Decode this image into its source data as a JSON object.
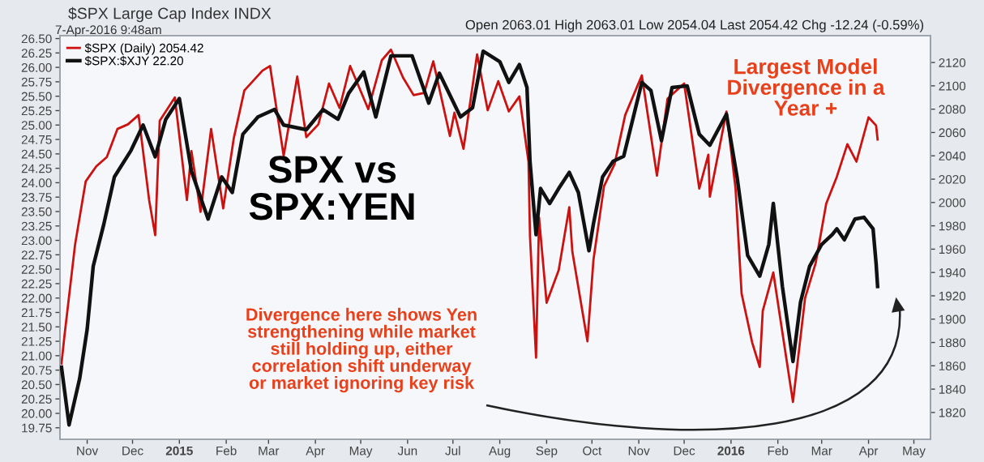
{
  "chart_data": {
    "type": "line",
    "title": "$SPX Large Cap Index INDX",
    "subtitle": "7-Apr-2016 9:48am",
    "annotations": [
      "Open 2063.01 High 2063.01 Low 2054.04 Last 2054.42 Chg -12.24 (-0.59%)",
      "SPX vs\nSPX:YEN",
      "Largest Model\nDivergence in a\nYear +",
      "Divergence here shows Yen\nstrengthening while market\nstill holding up, either\ncorrelation shift underway\nor market ignoring key risk"
    ],
    "legend": "top left",
    "series": [
      {
        "name": "$SPX (Daily) 2054.42",
        "color": "#cc1111",
        "axis": "y2",
        "x": [
          "2014-10-15",
          "2014-10-17",
          "2014-10-24",
          "2014-10-31",
          "2014-11-07",
          "2014-11-14",
          "2014-11-21",
          "2014-11-28",
          "2014-12-05",
          "2014-12-12",
          "2014-12-16",
          "2014-12-19",
          "2014-12-29",
          "2015-01-06",
          "2015-01-09",
          "2015-01-15",
          "2015-01-22",
          "2015-01-30",
          "2015-02-06",
          "2015-02-13",
          "2015-02-25",
          "2015-03-02",
          "2015-03-11",
          "2015-03-20",
          "2015-03-26",
          "2015-04-03",
          "2015-04-10",
          "2015-04-17",
          "2015-04-24",
          "2015-05-06",
          "2015-05-15",
          "2015-05-21",
          "2015-05-29",
          "2015-06-05",
          "2015-06-12",
          "2015-06-18",
          "2015-06-29",
          "2015-07-02",
          "2015-07-08",
          "2015-07-17",
          "2015-07-24",
          "2015-07-31",
          "2015-08-07",
          "2015-08-14",
          "2015-08-20",
          "2015-08-21",
          "2015-08-25",
          "2015-08-27",
          "2015-09-01",
          "2015-09-09",
          "2015-09-16",
          "2015-09-18",
          "2015-09-28",
          "2015-10-02",
          "2015-10-09",
          "2015-10-16",
          "2015-10-23",
          "2015-11-03",
          "2015-11-13",
          "2015-11-20",
          "2015-12-01",
          "2015-12-11",
          "2015-12-17",
          "2015-12-18",
          "2015-12-29",
          "2016-01-04",
          "2016-01-08",
          "2016-01-15",
          "2016-01-20",
          "2016-01-22",
          "2016-01-29",
          "2016-02-05",
          "2016-02-11",
          "2016-02-19",
          "2016-02-26",
          "2016-03-04",
          "2016-03-11",
          "2016-03-18",
          "2016-03-24",
          "2016-04-01",
          "2016-04-06",
          "2016-04-07"
        ],
        "values": [
          1862,
          1886,
          1964,
          2018,
          2031,
          2039,
          2063,
          2067,
          2075,
          2002,
          1972,
          2070,
          2090,
          2002,
          2044,
          1992,
          2063,
          1995,
          2055,
          2096,
          2113,
          2117,
          2040,
          2108,
          2056,
          2067,
          2102,
          2081,
          2117,
          2080,
          2122,
          2131,
          2107,
          2092,
          2094,
          2121,
          2057,
          2077,
          2046,
          2127,
          2079,
          2104,
          2078,
          2091,
          2035,
          1971,
          1867,
          1987,
          1914,
          1942,
          1996,
          1958,
          1881,
          1951,
          2014,
          2033,
          2075,
          2109,
          2023,
          2089,
          2102,
          2012,
          2041,
          2005,
          2078,
          2012,
          1922,
          1880,
          1859,
          1907,
          1940,
          1880,
          1829,
          1918,
          1948,
          1999,
          2022,
          2050,
          2035,
          2073,
          2066,
          2054
        ]
      },
      {
        "name": "$SPX:$XJY 22.20",
        "color": "#111111",
        "axis": "y",
        "x": [
          "2014-10-15",
          "2014-10-20",
          "2014-10-27",
          "2014-11-01",
          "2014-11-05",
          "2014-11-12",
          "2014-11-19",
          "2014-11-30",
          "2014-12-08",
          "2014-12-16",
          "2014-12-23",
          "2015-01-01",
          "2015-01-09",
          "2015-01-20",
          "2015-01-29",
          "2015-02-05",
          "2015-02-12",
          "2015-02-22",
          "2015-03-05",
          "2015-03-11",
          "2015-03-26",
          "2015-04-06",
          "2015-04-16",
          "2015-04-23",
          "2015-05-03",
          "2015-05-11",
          "2015-05-21",
          "2015-06-04",
          "2015-06-15",
          "2015-06-22",
          "2015-07-06",
          "2015-07-14",
          "2015-07-21",
          "2015-08-01",
          "2015-08-07",
          "2015-08-14",
          "2015-08-19",
          "2015-08-21",
          "2015-08-25",
          "2015-08-28",
          "2015-09-03",
          "2015-09-09",
          "2015-09-16",
          "2015-09-22",
          "2015-09-29",
          "2015-10-02",
          "2015-10-08",
          "2015-10-15",
          "2015-10-22",
          "2015-11-03",
          "2015-11-09",
          "2015-11-16",
          "2015-11-23",
          "2015-12-03",
          "2015-12-11",
          "2015-12-18",
          "2015-12-29",
          "2016-01-05",
          "2016-01-12",
          "2016-01-20",
          "2016-01-26",
          "2016-01-29",
          "2016-02-04",
          "2016-02-11",
          "2016-02-16",
          "2016-02-22",
          "2016-03-01",
          "2016-03-08",
          "2016-03-11",
          "2016-03-16",
          "2016-03-23",
          "2016-03-29",
          "2016-04-04",
          "2016-04-06",
          "2016-04-07"
        ],
        "values": [
          20.8,
          19.8,
          20.6,
          21.46,
          22.55,
          23.28,
          24.1,
          24.56,
          25.0,
          24.45,
          25.1,
          25.46,
          24.2,
          23.37,
          24.1,
          23.83,
          24.84,
          25.14,
          25.27,
          25.0,
          24.92,
          25.27,
          25.1,
          25.55,
          25.92,
          25.14,
          26.2,
          26.2,
          25.38,
          25.9,
          25.14,
          25.3,
          26.28,
          26.1,
          25.74,
          26.05,
          25.65,
          24.37,
          23.1,
          23.9,
          23.64,
          23.9,
          24.18,
          23.83,
          22.82,
          23.29,
          24.1,
          24.37,
          24.46,
          25.74,
          25.6,
          24.73,
          25.65,
          25.68,
          24.84,
          24.65,
          25.19,
          24.1,
          22.74,
          22.38,
          22.93,
          23.64,
          22.2,
          20.9,
          21.93,
          22.55,
          22.93,
          23.1,
          23.2,
          23.01,
          23.37,
          23.4,
          23.2,
          22.6,
          22.2
        ]
      }
    ],
    "xlim": [
      "2014-10-14",
      "2016-05-12"
    ],
    "xticks": [
      {
        "value": "2014-11-01",
        "label": "Nov"
      },
      {
        "value": "2014-12-01",
        "label": "Dec"
      },
      {
        "value": "2015-01-01",
        "label": "2015"
      },
      {
        "value": "2015-02-01",
        "label": "Feb"
      },
      {
        "value": "2015-03-01",
        "label": "Mar"
      },
      {
        "value": "2015-04-01",
        "label": "Apr"
      },
      {
        "value": "2015-05-01",
        "label": "May"
      },
      {
        "value": "2015-06-01",
        "label": "Jun"
      },
      {
        "value": "2015-07-01",
        "label": "Jul"
      },
      {
        "value": "2015-08-01",
        "label": "Aug"
      },
      {
        "value": "2015-09-01",
        "label": "Sep"
      },
      {
        "value": "2015-10-01",
        "label": "Oct"
      },
      {
        "value": "2015-11-01",
        "label": "Nov"
      },
      {
        "value": "2015-12-01",
        "label": "Dec"
      },
      {
        "value": "2016-01-01",
        "label": "2016"
      },
      {
        "value": "2016-02-01",
        "label": "Feb"
      },
      {
        "value": "2016-03-01",
        "label": "Mar"
      },
      {
        "value": "2016-04-01",
        "label": "Apr"
      },
      {
        "value": "2016-05-01",
        "label": "May"
      }
    ],
    "ylim": [
      19.55,
      26.55
    ],
    "yticks": [
      {
        "value": 19.75,
        "label": "19.75"
      },
      {
        "value": 20,
        "label": "20.00"
      },
      {
        "value": 20.25,
        "label": "20.25"
      },
      {
        "value": 20.5,
        "label": "20.50"
      },
      {
        "value": 20.75,
        "label": "20.75"
      },
      {
        "value": 21,
        "label": "21.00"
      },
      {
        "value": 21.25,
        "label": "21.25"
      },
      {
        "value": 21.5,
        "label": "21.50"
      },
      {
        "value": 21.75,
        "label": "21.75"
      },
      {
        "value": 22,
        "label": "22.00"
      },
      {
        "value": 22.25,
        "label": "22.25"
      },
      {
        "value": 22.5,
        "label": "22.50"
      },
      {
        "value": 22.75,
        "label": "22.75"
      },
      {
        "value": 23,
        "label": "23.00"
      },
      {
        "value": 23.25,
        "label": "23.25"
      },
      {
        "value": 23.5,
        "label": "23.50"
      },
      {
        "value": 23.75,
        "label": "23.75"
      },
      {
        "value": 24,
        "label": "24.00"
      },
      {
        "value": 24.25,
        "label": "24.25"
      },
      {
        "value": 24.5,
        "label": "24.50"
      },
      {
        "value": 24.75,
        "label": "24.75"
      },
      {
        "value": 25,
        "label": "25.00"
      },
      {
        "value": 25.25,
        "label": "25.25"
      },
      {
        "value": 25.5,
        "label": "25.50"
      },
      {
        "value": 25.75,
        "label": "25.75"
      },
      {
        "value": 26,
        "label": "26.00"
      },
      {
        "value": 26.25,
        "label": "26.25"
      },
      {
        "value": 26.5,
        "label": "26.50"
      }
    ],
    "y2lim": [
      1797,
      2143
    ],
    "y2ticks": [
      1820,
      1840,
      1860,
      1880,
      1900,
      1920,
      1940,
      1960,
      1980,
      2000,
      2020,
      2040,
      2060,
      2080,
      2100,
      2120
    ]
  }
}
